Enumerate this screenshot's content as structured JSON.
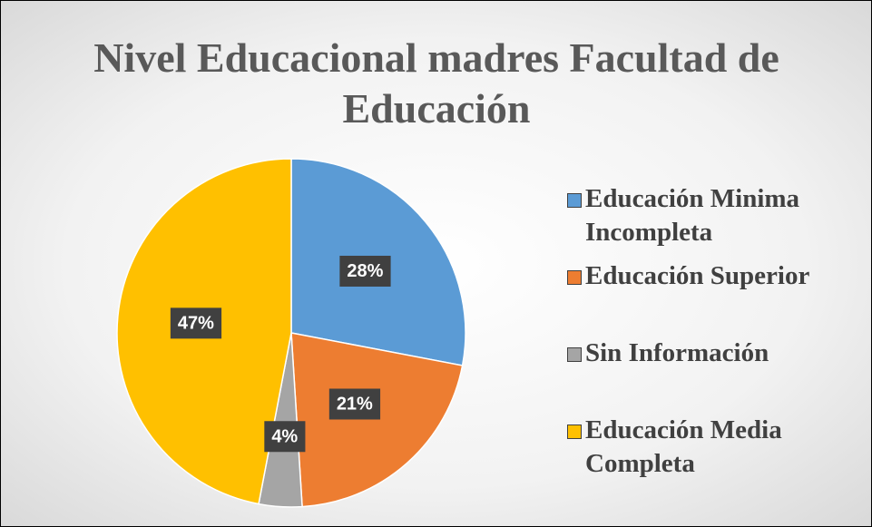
{
  "chart_data": {
    "type": "pie",
    "title": "Nivel Educacional madres Facultad de Educación",
    "categories": [
      "Educación Minima Incompleta",
      "Educación Superior",
      "Sin Información",
      "Educación Media Completa"
    ],
    "values": [
      28,
      21,
      4,
      47
    ],
    "value_labels": [
      "28%",
      "21%",
      "4%",
      "47%"
    ],
    "colors": [
      "#5b9bd5",
      "#ed7d31",
      "#a5a5a5",
      "#ffc000"
    ],
    "legend": "right"
  }
}
